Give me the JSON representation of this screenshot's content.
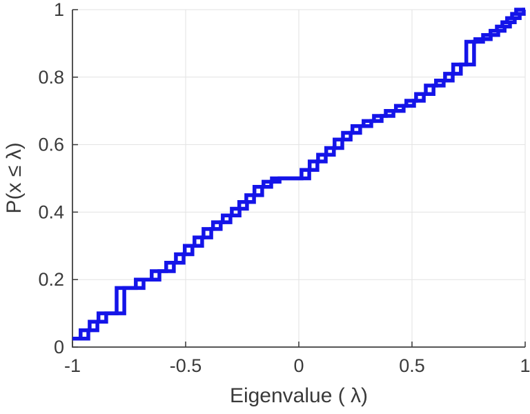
{
  "chart_data": {
    "type": "line",
    "subtype": "ecdf_step",
    "title": "",
    "xlabel": "Eigenvalue (  λ)",
    "ylabel": "P(x ≤ λ)",
    "xlim": [
      -1,
      1
    ],
    "ylim": [
      0,
      1
    ],
    "grid": true,
    "x_ticks": [
      {
        "v": -1,
        "label": "-1"
      },
      {
        "v": -0.5,
        "label": "-0.5"
      },
      {
        "v": 0,
        "label": "0"
      },
      {
        "v": 0.5,
        "label": "0.5"
      },
      {
        "v": 1,
        "label": "1"
      }
    ],
    "y_ticks": [
      {
        "v": 0,
        "label": "0"
      },
      {
        "v": 0.2,
        "label": "0.2"
      },
      {
        "v": 0.4,
        "label": "0.4"
      },
      {
        "v": 0.6,
        "label": "0.6"
      },
      {
        "v": 0.8,
        "label": "0.8"
      },
      {
        "v": 1,
        "label": "1"
      }
    ],
    "line_color": "#1414e8",
    "axis_color": "#3f3f3f",
    "grid_color": "#e2e2e2",
    "series": [
      {
        "name": "ecdf-curve-1",
        "start": {
          "x": -1,
          "p": 0.025
        },
        "steps": [
          [
            -0.93,
            0.05
          ],
          [
            -0.89,
            0.075
          ],
          [
            -0.851,
            0.1
          ],
          [
            -0.771,
            0.175
          ],
          [
            -0.686,
            0.2
          ],
          [
            -0.616,
            0.225
          ],
          [
            -0.552,
            0.25
          ],
          [
            -0.509,
            0.275
          ],
          [
            -0.47,
            0.3
          ],
          [
            -0.427,
            0.325
          ],
          [
            -0.387,
            0.35
          ],
          [
            -0.345,
            0.37
          ],
          [
            -0.302,
            0.39
          ],
          [
            -0.262,
            0.41
          ],
          [
            -0.229,
            0.43
          ],
          [
            -0.198,
            0.45
          ],
          [
            -0.162,
            0.475
          ],
          [
            -0.122,
            0.49
          ],
          [
            -0.085,
            0.5
          ],
          [
            0.046,
            0.525
          ],
          [
            0.082,
            0.55
          ],
          [
            0.119,
            0.57
          ],
          [
            0.155,
            0.59
          ],
          [
            0.192,
            0.615
          ],
          [
            0.229,
            0.635
          ],
          [
            0.271,
            0.655
          ],
          [
            0.32,
            0.67
          ],
          [
            0.366,
            0.685
          ],
          [
            0.418,
            0.7
          ],
          [
            0.463,
            0.715
          ],
          [
            0.509,
            0.73
          ],
          [
            0.552,
            0.75
          ],
          [
            0.595,
            0.775
          ],
          [
            0.64,
            0.79
          ],
          [
            0.68,
            0.81
          ],
          [
            0.716,
            0.8375
          ],
          [
            0.774,
            0.905
          ],
          [
            0.814,
            0.9125
          ],
          [
            0.848,
            0.925
          ],
          [
            0.881,
            0.9375
          ],
          [
            0.909,
            0.95
          ],
          [
            0.933,
            0.9625
          ],
          [
            0.954,
            0.975
          ],
          [
            0.976,
            0.9875
          ],
          [
            0.994,
            1.0
          ]
        ]
      },
      {
        "name": "ecdf-curve-2",
        "start": {
          "x": -1,
          "p": 0.025
        },
        "steps": [
          [
            -0.964,
            0.05
          ],
          [
            -0.924,
            0.075
          ],
          [
            -0.885,
            0.1
          ],
          [
            -0.805,
            0.175
          ],
          [
            -0.72,
            0.2
          ],
          [
            -0.65,
            0.225
          ],
          [
            -0.586,
            0.25
          ],
          [
            -0.543,
            0.275
          ],
          [
            -0.504,
            0.3
          ],
          [
            -0.461,
            0.325
          ],
          [
            -0.421,
            0.35
          ],
          [
            -0.379,
            0.37
          ],
          [
            -0.336,
            0.39
          ],
          [
            -0.296,
            0.41
          ],
          [
            -0.263,
            0.43
          ],
          [
            -0.232,
            0.45
          ],
          [
            -0.196,
            0.475
          ],
          [
            -0.156,
            0.49
          ],
          [
            -0.119,
            0.5
          ],
          [
            0.012,
            0.525
          ],
          [
            0.048,
            0.55
          ],
          [
            0.085,
            0.57
          ],
          [
            0.121,
            0.59
          ],
          [
            0.158,
            0.615
          ],
          [
            0.195,
            0.635
          ],
          [
            0.237,
            0.655
          ],
          [
            0.286,
            0.67
          ],
          [
            0.332,
            0.685
          ],
          [
            0.384,
            0.7
          ],
          [
            0.429,
            0.715
          ],
          [
            0.475,
            0.73
          ],
          [
            0.518,
            0.75
          ],
          [
            0.561,
            0.775
          ],
          [
            0.606,
            0.79
          ],
          [
            0.646,
            0.81
          ],
          [
            0.682,
            0.8375
          ],
          [
            0.74,
            0.905
          ],
          [
            0.78,
            0.9125
          ],
          [
            0.814,
            0.925
          ],
          [
            0.847,
            0.9375
          ],
          [
            0.875,
            0.95
          ],
          [
            0.899,
            0.9625
          ],
          [
            0.92,
            0.975
          ],
          [
            0.942,
            0.9875
          ],
          [
            0.96,
            1.0
          ]
        ]
      }
    ]
  }
}
